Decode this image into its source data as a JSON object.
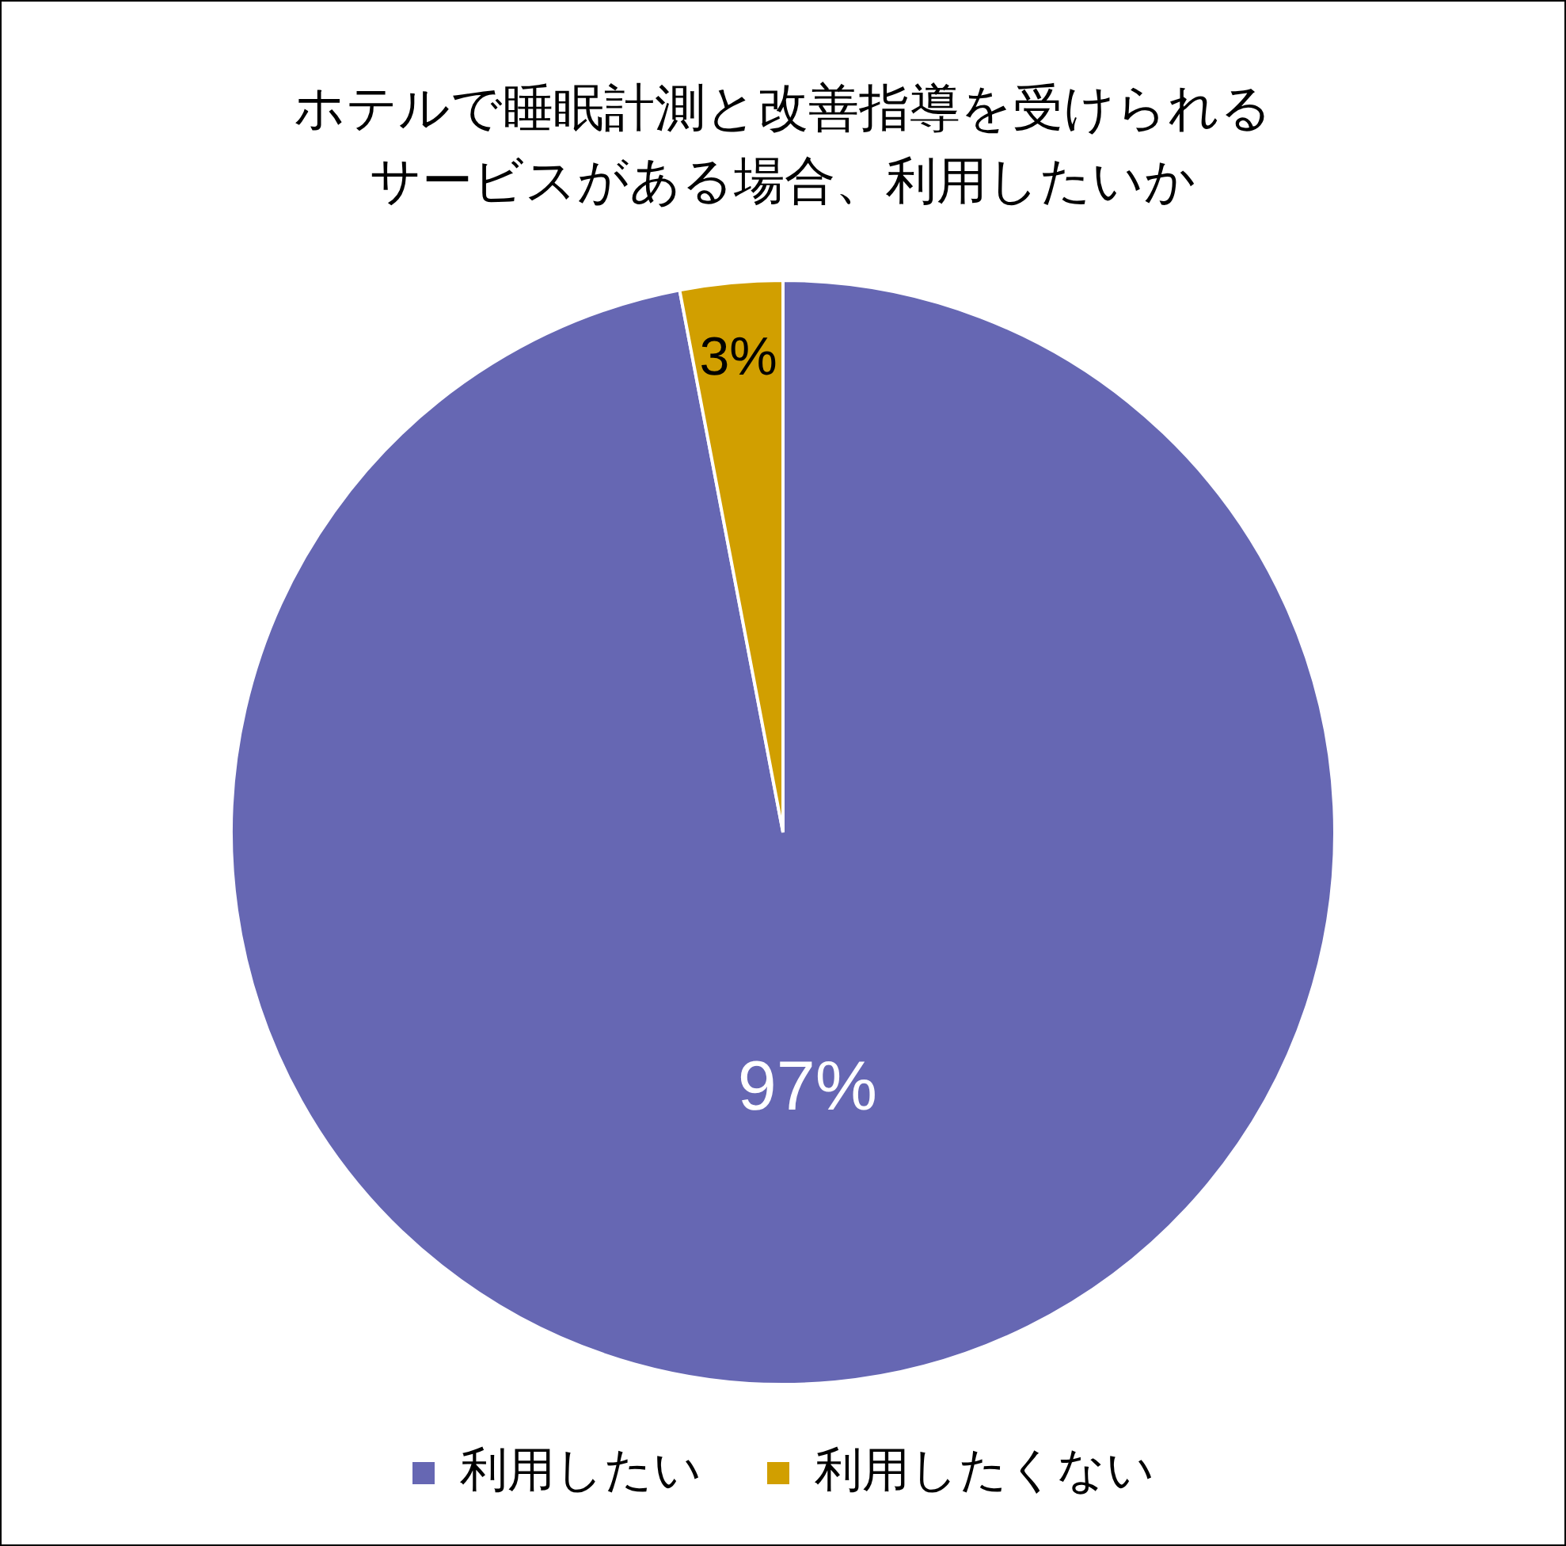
{
  "chart_data": {
    "type": "pie",
    "title": "ホテルで睡眠計測と改善指導を受けられるサービスがある場合、利用したいか",
    "categories": [
      "利用したい",
      "利用したくない"
    ],
    "values": [
      97,
      3
    ],
    "colors": [
      "#6667b3",
      "#d19f00"
    ],
    "value_labels": [
      "97%",
      "3%"
    ],
    "legend": "bottom"
  }
}
